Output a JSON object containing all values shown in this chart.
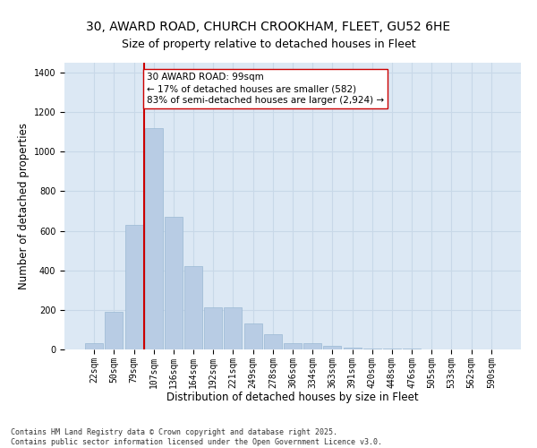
{
  "title_line1": "30, AWARD ROAD, CHURCH CROOKHAM, FLEET, GU52 6HE",
  "title_line2": "Size of property relative to detached houses in Fleet",
  "xlabel": "Distribution of detached houses by size in Fleet",
  "ylabel": "Number of detached properties",
  "categories": [
    "22sqm",
    "50sqm",
    "79sqm",
    "107sqm",
    "136sqm",
    "164sqm",
    "192sqm",
    "221sqm",
    "249sqm",
    "278sqm",
    "306sqm",
    "334sqm",
    "363sqm",
    "391sqm",
    "420sqm",
    "448sqm",
    "476sqm",
    "505sqm",
    "533sqm",
    "562sqm",
    "590sqm"
  ],
  "values": [
    30,
    190,
    630,
    1120,
    670,
    420,
    215,
    215,
    130,
    75,
    30,
    30,
    20,
    10,
    5,
    5,
    3,
    2,
    1,
    0,
    0
  ],
  "bar_color": "#b8cce4",
  "bar_edge_color": "#9ab8d4",
  "vline_x_index": 3,
  "vline_color": "#cc0000",
  "annotation_text": "30 AWARD ROAD: 99sqm\n← 17% of detached houses are smaller (582)\n83% of semi-detached houses are larger (2,924) →",
  "annotation_box_color": "#ffffff",
  "annotation_box_edge": "#cc0000",
  "ylim": [
    0,
    1450
  ],
  "yticks": [
    0,
    200,
    400,
    600,
    800,
    1000,
    1200,
    1400
  ],
  "grid_color": "#c8d8e8",
  "background_color": "#dce8f4",
  "footer_text": "Contains HM Land Registry data © Crown copyright and database right 2025.\nContains public sector information licensed under the Open Government Licence v3.0.",
  "title_fontsize": 10,
  "subtitle_fontsize": 9,
  "axis_label_fontsize": 8.5,
  "tick_fontsize": 7,
  "annotation_fontsize": 7.5,
  "footer_fontsize": 6
}
